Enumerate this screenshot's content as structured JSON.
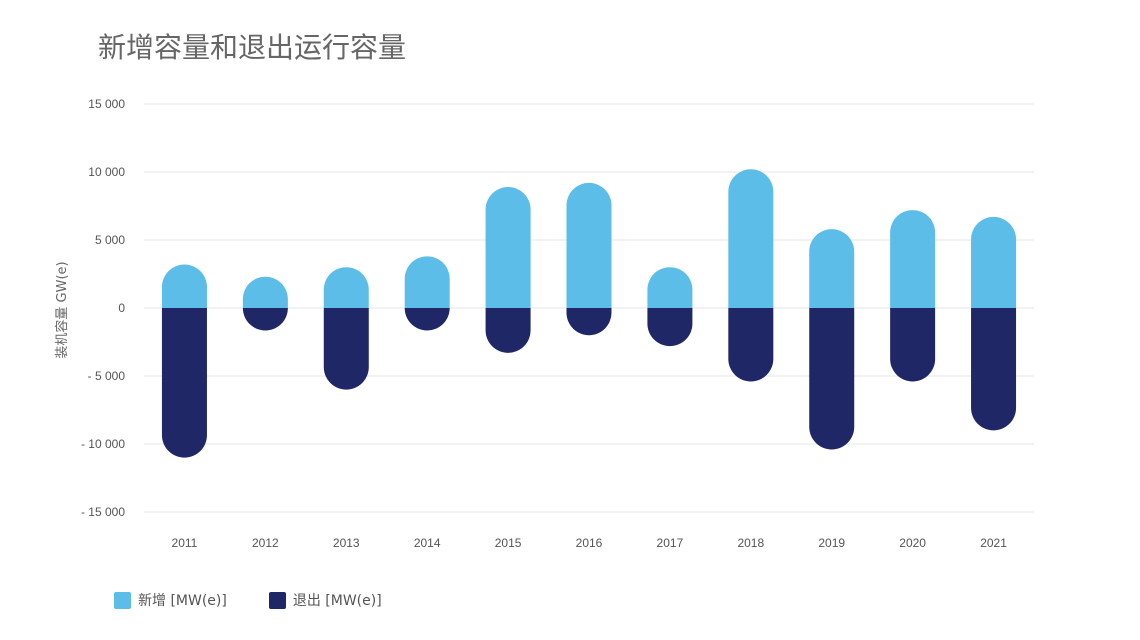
{
  "chart_data": {
    "type": "bar",
    "title": "新增容量和退出运行容量",
    "ylabel": "装机容量 GW(e)",
    "xlabel": "",
    "ylim": [
      -15000,
      15000
    ],
    "yticks": [
      15000,
      10000,
      5000,
      0,
      -5000,
      -10000,
      -15000
    ],
    "ytick_labels": [
      "15 000",
      "10 000",
      "5 000",
      "0",
      "- 5 000",
      "- 10 000",
      "- 15 000"
    ],
    "categories": [
      "2011",
      "2012",
      "2013",
      "2014",
      "2015",
      "2016",
      "2017",
      "2018",
      "2019",
      "2020",
      "2021"
    ],
    "series": [
      {
        "name": "新增 [MW(e)]",
        "color": "#5dbde9",
        "values": [
          3200,
          2300,
          3000,
          3800,
          8900,
          9200,
          3000,
          10200,
          5800,
          7200,
          6700
        ]
      },
      {
        "name": "退出 [MW(e)]",
        "color": "#1f2767",
        "values": [
          -11000,
          -1400,
          -6000,
          -700,
          -3300,
          -2000,
          -2800,
          -5400,
          -10400,
          -5400,
          -9000
        ]
      }
    ],
    "grid": true,
    "legend_position": "bottom-left"
  }
}
